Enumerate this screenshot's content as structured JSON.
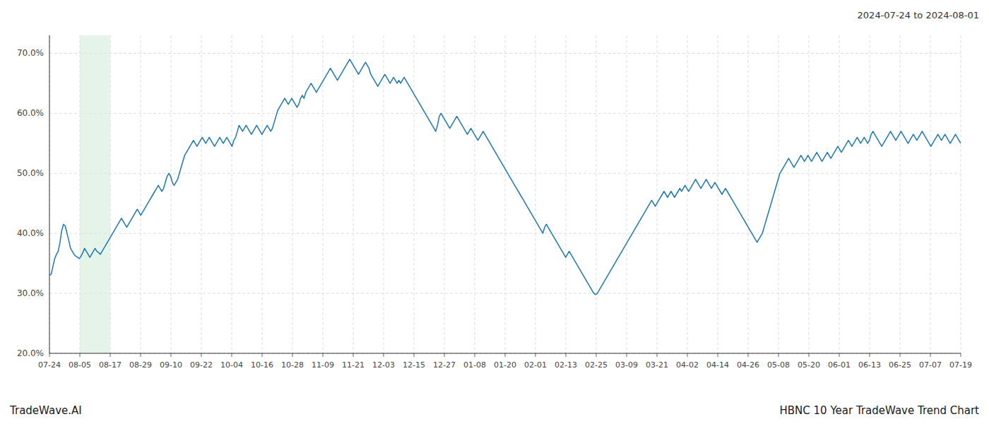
{
  "chart_data": {
    "type": "line",
    "title": "HBNC 10 Year TradeWave Trend Chart",
    "subtitle": "2024-07-24 to 2024-08-01",
    "annotations": [
      "TradeWave.AI"
    ],
    "color": "#1f77b4",
    "grid": true,
    "highlight": {
      "x": [
        1.0,
        2.0
      ],
      "color": "#d4edda"
    },
    "xlim": [
      0,
      30
    ],
    "xticks": [
      {
        "value": 0,
        "label": "07-24"
      },
      {
        "value": 1,
        "label": "08-05"
      },
      {
        "value": 2,
        "label": "08-17"
      },
      {
        "value": 3,
        "label": "08-29"
      },
      {
        "value": 4,
        "label": "09-10"
      },
      {
        "value": 5,
        "label": "09-22"
      },
      {
        "value": 6,
        "label": "10-04"
      },
      {
        "value": 7,
        "label": "10-16"
      },
      {
        "value": 8,
        "label": "10-28"
      },
      {
        "value": 9,
        "label": "11-09"
      },
      {
        "value": 10,
        "label": "11-21"
      },
      {
        "value": 11,
        "label": "12-03"
      },
      {
        "value": 12,
        "label": "12-15"
      },
      {
        "value": 13,
        "label": "12-27"
      },
      {
        "value": 14,
        "label": "01-08"
      },
      {
        "value": 15,
        "label": "01-20"
      },
      {
        "value": 16,
        "label": "02-01"
      },
      {
        "value": 17,
        "label": "02-13"
      },
      {
        "value": 18,
        "label": "02-25"
      },
      {
        "value": 19,
        "label": "03-09"
      },
      {
        "value": 20,
        "label": "03-21"
      },
      {
        "value": 21,
        "label": "04-02"
      },
      {
        "value": 22,
        "label": "04-14"
      },
      {
        "value": 23,
        "label": "04-26"
      },
      {
        "value": 24,
        "label": "05-08"
      },
      {
        "value": 25,
        "label": "05-20"
      },
      {
        "value": 26,
        "label": "06-01"
      },
      {
        "value": 27,
        "label": "06-13"
      },
      {
        "value": 28,
        "label": "06-25"
      },
      {
        "value": 29,
        "label": "07-07"
      },
      {
        "value": 30,
        "label": "07-19"
      }
    ],
    "ylim": [
      20,
      73
    ],
    "yticks": [
      {
        "value": 20,
        "label": "20.0%"
      },
      {
        "value": 30,
        "label": "30.0%"
      },
      {
        "value": 40,
        "label": "40.0%"
      },
      {
        "value": 50,
        "label": "50.0%"
      },
      {
        "value": 60,
        "label": "60.0%"
      },
      {
        "value": 70,
        "label": "70.0%"
      }
    ],
    "values": [
      33.0,
      33.2,
      34.5,
      35.8,
      36.5,
      37.0,
      38.5,
      40.5,
      41.5,
      41.2,
      40.0,
      38.8,
      37.5,
      37.0,
      36.5,
      36.2,
      36.0,
      35.8,
      36.2,
      36.8,
      37.5,
      37.0,
      36.5,
      36.0,
      36.5,
      37.0,
      37.5,
      37.0,
      36.8,
      36.5,
      37.0,
      37.5,
      38.0,
      38.5,
      39.0,
      39.5,
      40.0,
      40.5,
      41.0,
      41.5,
      42.0,
      42.5,
      42.0,
      41.5,
      41.0,
      41.5,
      42.0,
      42.5,
      43.0,
      43.5,
      44.0,
      43.5,
      43.0,
      43.5,
      44.0,
      44.5,
      45.0,
      45.5,
      46.0,
      46.5,
      47.0,
      47.5,
      48.0,
      47.5,
      47.0,
      47.5,
      48.5,
      49.5,
      50.0,
      49.5,
      48.5,
      48.0,
      48.5,
      49.0,
      50.0,
      51.0,
      52.0,
      53.0,
      53.5,
      54.0,
      54.5,
      55.0,
      55.5,
      55.0,
      54.5,
      55.0,
      55.5,
      56.0,
      55.5,
      55.0,
      55.5,
      56.0,
      55.5,
      55.0,
      54.5,
      55.0,
      55.5,
      56.0,
      55.5,
      55.0,
      55.5,
      56.0,
      55.5,
      55.0,
      54.5,
      55.5,
      56.0,
      57.0,
      58.0,
      57.5,
      57.0,
      57.5,
      58.0,
      57.5,
      57.0,
      56.5,
      57.0,
      57.5,
      58.0,
      57.5,
      57.0,
      56.5,
      57.0,
      57.5,
      58.0,
      57.5,
      57.0,
      57.5,
      58.5,
      59.5,
      60.5,
      61.0,
      61.5,
      62.0,
      62.5,
      62.0,
      61.5,
      62.0,
      62.5,
      62.0,
      61.5,
      61.0,
      61.5,
      62.5,
      63.0,
      62.5,
      63.5,
      64.0,
      64.5,
      65.0,
      64.5,
      64.0,
      63.5,
      64.0,
      64.5,
      65.0,
      65.5,
      66.0,
      66.5,
      67.0,
      67.5,
      67.0,
      66.5,
      66.0,
      65.5,
      66.0,
      66.5,
      67.0,
      67.5,
      68.0,
      68.5,
      69.0,
      68.5,
      68.0,
      67.5,
      67.0,
      66.5,
      67.0,
      67.5,
      68.0,
      68.5,
      68.0,
      67.5,
      66.5,
      66.0,
      65.5,
      65.0,
      64.5,
      65.0,
      65.5,
      66.0,
      66.5,
      66.0,
      65.5,
      65.0,
      65.5,
      66.0,
      65.5,
      65.0,
      65.5,
      65.0,
      65.5,
      66.0,
      65.5,
      65.0,
      64.5,
      64.0,
      63.5,
      63.0,
      62.5,
      62.0,
      61.5,
      61.0,
      60.5,
      60.0,
      59.5,
      59.0,
      58.5,
      58.0,
      57.5,
      57.0,
      58.0,
      59.5,
      60.0,
      59.5,
      59.0,
      58.5,
      58.0,
      57.5,
      58.0,
      58.5,
      59.0,
      59.5,
      59.0,
      58.5,
      58.0,
      57.5,
      57.0,
      56.5,
      57.0,
      57.5,
      57.0,
      56.5,
      56.0,
      55.5,
      56.0,
      56.5,
      57.0,
      56.5,
      56.0,
      55.5,
      55.0,
      54.5,
      54.0,
      53.5,
      53.0,
      52.5,
      52.0,
      51.5,
      51.0,
      50.5,
      50.0,
      49.5,
      49.0,
      48.5,
      48.0,
      47.5,
      47.0,
      46.5,
      46.0,
      45.5,
      45.0,
      44.5,
      44.0,
      43.5,
      43.0,
      42.5,
      42.0,
      41.5,
      41.0,
      40.5,
      40.0,
      41.0,
      41.5,
      41.0,
      40.5,
      40.0,
      39.5,
      39.0,
      38.5,
      38.0,
      37.5,
      37.0,
      36.5,
      36.0,
      36.5,
      37.0,
      36.5,
      36.0,
      35.5,
      35.0,
      34.5,
      34.0,
      33.5,
      33.0,
      32.5,
      32.0,
      31.5,
      31.0,
      30.5,
      30.0,
      29.8,
      30.0,
      30.5,
      31.0,
      31.5,
      32.0,
      32.5,
      33.0,
      33.5,
      34.0,
      34.5,
      35.0,
      35.5,
      36.0,
      36.5,
      37.0,
      37.5,
      38.0,
      38.5,
      39.0,
      39.5,
      40.0,
      40.5,
      41.0,
      41.5,
      42.0,
      42.5,
      43.0,
      43.5,
      44.0,
      44.5,
      45.0,
      45.5,
      45.0,
      44.5,
      45.0,
      45.5,
      46.0,
      46.5,
      47.0,
      46.5,
      46.0,
      46.5,
      47.0,
      46.5,
      46.0,
      46.5,
      47.0,
      47.5,
      47.0,
      47.5,
      48.0,
      47.5,
      47.0,
      47.5,
      48.0,
      48.5,
      49.0,
      48.5,
      48.0,
      47.5,
      48.0,
      48.5,
      49.0,
      48.5,
      48.0,
      47.5,
      48.0,
      48.5,
      48.0,
      47.5,
      47.0,
      46.5,
      47.0,
      47.5,
      47.0,
      46.5,
      46.0,
      45.5,
      45.0,
      44.5,
      44.0,
      43.5,
      43.0,
      42.5,
      42.0,
      41.5,
      41.0,
      40.5,
      40.0,
      39.5,
      39.0,
      38.5,
      39.0,
      39.5,
      40.0,
      41.0,
      42.0,
      43.0,
      44.0,
      45.0,
      46.0,
      47.0,
      48.0,
      49.0,
      50.0,
      50.5,
      51.0,
      51.5,
      52.0,
      52.5,
      52.0,
      51.5,
      51.0,
      51.5,
      52.0,
      52.5,
      53.0,
      52.5,
      52.0,
      52.5,
      53.0,
      52.5,
      52.0,
      52.5,
      53.0,
      53.5,
      53.0,
      52.5,
      52.0,
      52.5,
      53.0,
      53.5,
      53.0,
      52.5,
      53.0,
      53.5,
      54.0,
      54.5,
      54.0,
      53.5,
      54.0,
      54.5,
      55.0,
      55.5,
      55.0,
      54.5,
      55.0,
      55.5,
      56.0,
      55.5,
      55.0,
      55.5,
      56.0,
      55.5,
      55.0,
      55.5,
      56.5,
      57.0,
      56.5,
      56.0,
      55.5,
      55.0,
      54.5,
      55.0,
      55.5,
      56.0,
      56.5,
      57.0,
      56.5,
      56.0,
      55.5,
      56.0,
      56.5,
      57.0,
      56.5,
      56.0,
      55.5,
      55.0,
      55.5,
      56.0,
      56.5,
      56.0,
      55.5,
      56.0,
      56.5,
      57.0,
      56.5,
      56.0,
      55.5,
      55.0,
      54.5,
      55.0,
      55.5,
      56.0,
      56.5,
      56.0,
      55.5,
      56.0,
      56.5,
      56.0,
      55.5,
      55.0,
      55.5,
      56.0,
      56.5,
      56.0,
      55.5,
      55.0
    ]
  }
}
